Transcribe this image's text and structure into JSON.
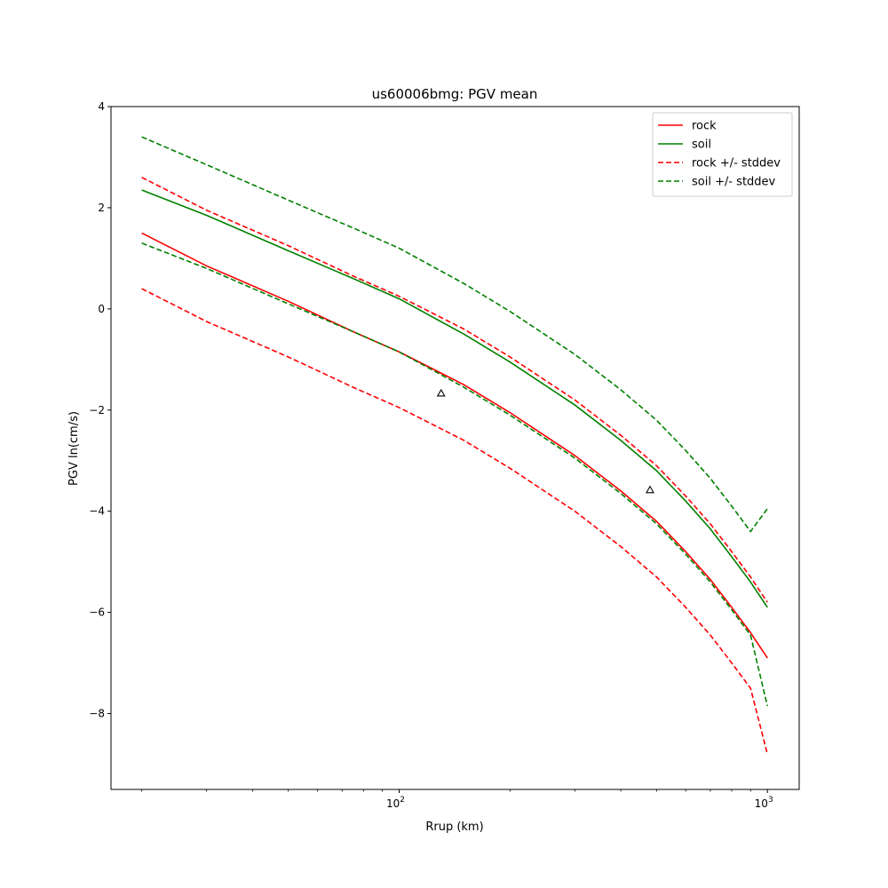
{
  "chart_data": {
    "type": "line",
    "title": "us60006bmg: PGV mean",
    "xlabel": "Rrup (km)",
    "ylabel": "PGV ln(cm/s)",
    "xscale": "log",
    "xlim": [
      16.5,
      1220
    ],
    "ylim": [
      -9.5,
      4
    ],
    "x_ticks": [
      {
        "value": 100,
        "base": "10",
        "exp": "2"
      },
      {
        "value": 1000,
        "base": "10",
        "exp": "3"
      }
    ],
    "y_ticks": [
      4,
      2,
      0,
      -2,
      -4,
      -6,
      -8
    ],
    "y_tick_labels": [
      "4",
      "2",
      "0",
      "−2",
      "−4",
      "−6",
      "−8"
    ],
    "grid": false,
    "legend_position": "top-right",
    "series": [
      {
        "name": "rock",
        "style": "solid",
        "color": "#ff0000",
        "x": [
          20,
          30,
          50,
          75,
          100,
          150,
          200,
          300,
          400,
          500,
          600,
          700,
          800,
          900,
          1000
        ],
        "y": [
          1.5,
          0.85,
          0.15,
          -0.45,
          -0.85,
          -1.5,
          -2.05,
          -2.9,
          -3.6,
          -4.2,
          -4.8,
          -5.35,
          -5.9,
          -6.4,
          -6.9
        ]
      },
      {
        "name": "soil",
        "style": "solid",
        "color": "#008000",
        "x": [
          20,
          30,
          50,
          75,
          100,
          150,
          200,
          300,
          400,
          500,
          600,
          700,
          800,
          900,
          1000
        ],
        "y": [
          2.35,
          1.85,
          1.15,
          0.6,
          0.2,
          -0.5,
          -1.05,
          -1.9,
          -2.6,
          -3.2,
          -3.8,
          -4.35,
          -4.9,
          -5.4,
          -5.9
        ]
      },
      {
        "name": "rock +/- stddev",
        "style": "dashed",
        "color": "#ff0000",
        "x": [
          20,
          30,
          50,
          75,
          100,
          150,
          200,
          300,
          400,
          500,
          600,
          700,
          800,
          900,
          1000
        ],
        "y": [
          2.6,
          1.95,
          1.25,
          0.65,
          0.25,
          -0.4,
          -0.95,
          -1.8,
          -2.5,
          -3.1,
          -3.7,
          -4.25,
          -4.8,
          -5.3,
          -5.8
        ]
      },
      {
        "name": "rock +/- stddev",
        "style": "dashed",
        "color": "#ff0000",
        "legend": false,
        "x": [
          20,
          30,
          50,
          75,
          100,
          150,
          200,
          300,
          400,
          500,
          600,
          700,
          800,
          900,
          1000
        ],
        "y": [
          0.4,
          -0.25,
          -0.95,
          -1.55,
          -1.95,
          -2.6,
          -3.15,
          -4.0,
          -4.7,
          -5.3,
          -5.9,
          -6.45,
          -7.0,
          -7.5,
          -8.8
        ]
      },
      {
        "name": "soil +/- stddev",
        "style": "dashed",
        "color": "#008000",
        "x": [
          20,
          30,
          50,
          75,
          100,
          150,
          200,
          300,
          400,
          500,
          600,
          700,
          800,
          900,
          1000
        ],
        "y": [
          3.4,
          2.85,
          2.15,
          1.6,
          1.2,
          0.5,
          -0.05,
          -0.9,
          -1.6,
          -2.2,
          -2.8,
          -3.35,
          -3.9,
          -4.4,
          -3.95
        ]
      },
      {
        "name": "soil +/- stddev",
        "style": "dashed",
        "color": "#008000",
        "legend": false,
        "x": [
          20,
          30,
          50,
          75,
          100,
          150,
          200,
          300,
          400,
          500,
          600,
          700,
          800,
          900,
          1000
        ],
        "y": [
          1.3,
          0.8,
          0.1,
          -0.45,
          -0.85,
          -1.55,
          -2.1,
          -2.95,
          -3.65,
          -4.25,
          -4.85,
          -5.4,
          -5.95,
          -6.45,
          -7.85
        ]
      }
    ],
    "observations": {
      "marker": "triangle-open",
      "color": "#000000",
      "points": [
        {
          "x": 130,
          "y": -1.67
        },
        {
          "x": 480,
          "y": -3.58
        }
      ]
    }
  }
}
